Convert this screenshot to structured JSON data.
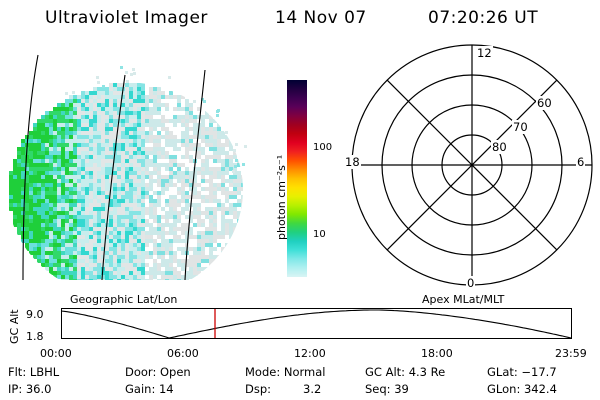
{
  "header": {
    "instrument": "Ultraviolet Imager",
    "date": "14 Nov 07",
    "time": "07:20:26 UT"
  },
  "colorbar": {
    "label": "photon cm⁻²s⁻¹",
    "ticks": [
      "100",
      "10"
    ],
    "colors": [
      "#000033",
      "#200040",
      "#3c0050",
      "#5a0058",
      "#800040",
      "#a00020",
      "#c00010",
      "#e00020",
      "#f02020",
      "#ff5000",
      "#ff8c00",
      "#ffc000",
      "#ffe000",
      "#e8f000",
      "#b8f000",
      "#80e800",
      "#40d840",
      "#20d080",
      "#20d0c0",
      "#40e0d8",
      "#80e8e8",
      "#b0f0f0",
      "#d8f4f4"
    ]
  },
  "polar_plot": {
    "lat_labels": [
      "60",
      "70",
      "80"
    ],
    "mlt_labels": {
      "top": "12",
      "left": "18",
      "right": "6",
      "bottom": "0"
    }
  },
  "timeline": {
    "left_label": "Geographic Lat/Lon",
    "right_label": "Apex MLat/MLT",
    "axis_label": "GC Alt",
    "y_ticks": [
      "9.0",
      "1.8"
    ],
    "x_ticks": [
      "00:00",
      "06:00",
      "12:00",
      "18:00",
      "23:59"
    ],
    "marker_color": "#cc0000"
  },
  "info": {
    "row1": {
      "flt": "Flt: LBHL",
      "door": "Door: Open",
      "mode": "Mode: Normal",
      "gcalt": "GC Alt: 4.3 Re",
      "glat": "GLat: −17.7"
    },
    "row2": {
      "ip": "IP: 36.0",
      "gain": "Gain: 14",
      "dsp_label": "Dsp:",
      "dsp_value": "3.2",
      "seq": "Seq: 39",
      "glon": "GLon: 342.4"
    }
  }
}
